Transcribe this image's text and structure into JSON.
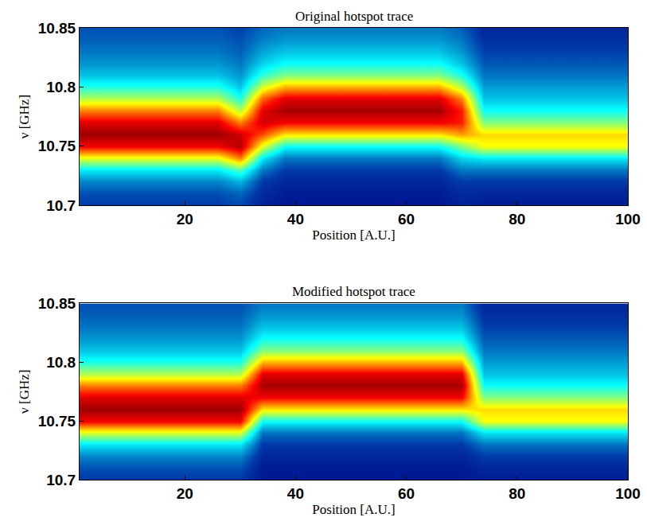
{
  "chart_data": [
    {
      "type": "heatmap",
      "title": "Original hotspot trace",
      "x_label": "Position [A.U.]",
      "y_label": "ν [GHz]",
      "x": [
        2,
        6,
        10,
        14,
        18,
        22,
        26,
        30,
        34,
        38,
        42,
        46,
        50,
        54,
        58,
        62,
        66,
        70,
        74,
        78,
        82,
        86,
        90,
        94,
        98
      ],
      "y": [
        10.7,
        10.71,
        10.72,
        10.73,
        10.74,
        10.75,
        10.76,
        10.77,
        10.78,
        10.79,
        10.8,
        10.81,
        10.82,
        10.83,
        10.84,
        10.85
      ],
      "z": [
        [
          0.12,
          0.12,
          0.12,
          0.12,
          0.12,
          0.12,
          0.12,
          0.14,
          0.07,
          0.05,
          0.05,
          0.05,
          0.05,
          0.05,
          0.05,
          0.05,
          0.05,
          0.07,
          0.06,
          0.06,
          0.06,
          0.06,
          0.06,
          0.06,
          0.06
        ],
        [
          0.15,
          0.15,
          0.15,
          0.15,
          0.15,
          0.15,
          0.15,
          0.18,
          0.09,
          0.06,
          0.06,
          0.06,
          0.06,
          0.06,
          0.06,
          0.06,
          0.06,
          0.09,
          0.08,
          0.08,
          0.08,
          0.08,
          0.08,
          0.08,
          0.08
        ],
        [
          0.22,
          0.22,
          0.22,
          0.22,
          0.22,
          0.22,
          0.22,
          0.28,
          0.12,
          0.08,
          0.08,
          0.08,
          0.08,
          0.08,
          0.08,
          0.08,
          0.08,
          0.12,
          0.12,
          0.12,
          0.12,
          0.12,
          0.12,
          0.12,
          0.12
        ],
        [
          0.35,
          0.35,
          0.35,
          0.35,
          0.35,
          0.35,
          0.35,
          0.45,
          0.2,
          0.12,
          0.12,
          0.12,
          0.12,
          0.12,
          0.12,
          0.12,
          0.12,
          0.2,
          0.2,
          0.2,
          0.2,
          0.2,
          0.2,
          0.2,
          0.2
        ],
        [
          0.6,
          0.6,
          0.6,
          0.6,
          0.6,
          0.6,
          0.6,
          0.75,
          0.35,
          0.2,
          0.2,
          0.2,
          0.2,
          0.2,
          0.2,
          0.2,
          0.2,
          0.32,
          0.35,
          0.35,
          0.35,
          0.35,
          0.35,
          0.35,
          0.35
        ],
        [
          0.88,
          0.88,
          0.88,
          0.88,
          0.88,
          0.88,
          0.88,
          0.95,
          0.6,
          0.38,
          0.38,
          0.38,
          0.38,
          0.38,
          0.38,
          0.38,
          0.38,
          0.5,
          0.62,
          0.62,
          0.62,
          0.62,
          0.62,
          0.62,
          0.62
        ],
        [
          0.97,
          0.97,
          0.97,
          0.97,
          0.97,
          0.97,
          0.97,
          0.92,
          0.8,
          0.65,
          0.65,
          0.65,
          0.65,
          0.65,
          0.65,
          0.65,
          0.65,
          0.72,
          0.66,
          0.66,
          0.66,
          0.66,
          0.66,
          0.66,
          0.66
        ],
        [
          0.9,
          0.9,
          0.9,
          0.9,
          0.9,
          0.9,
          0.9,
          0.75,
          0.92,
          0.88,
          0.88,
          0.88,
          0.88,
          0.88,
          0.88,
          0.88,
          0.88,
          0.85,
          0.5,
          0.5,
          0.5,
          0.5,
          0.5,
          0.5,
          0.5
        ],
        [
          0.75,
          0.75,
          0.75,
          0.75,
          0.75,
          0.75,
          0.75,
          0.55,
          0.9,
          0.96,
          0.96,
          0.96,
          0.96,
          0.96,
          0.96,
          0.96,
          0.96,
          0.85,
          0.38,
          0.38,
          0.38,
          0.38,
          0.38,
          0.38,
          0.38
        ],
        [
          0.55,
          0.55,
          0.55,
          0.55,
          0.55,
          0.55,
          0.55,
          0.4,
          0.78,
          0.9,
          0.9,
          0.9,
          0.9,
          0.9,
          0.9,
          0.9,
          0.9,
          0.75,
          0.3,
          0.3,
          0.3,
          0.3,
          0.3,
          0.3,
          0.3
        ],
        [
          0.4,
          0.4,
          0.4,
          0.4,
          0.4,
          0.4,
          0.4,
          0.3,
          0.58,
          0.7,
          0.7,
          0.7,
          0.7,
          0.7,
          0.7,
          0.7,
          0.7,
          0.55,
          0.25,
          0.25,
          0.25,
          0.25,
          0.25,
          0.25,
          0.25
        ],
        [
          0.3,
          0.3,
          0.3,
          0.3,
          0.3,
          0.3,
          0.3,
          0.24,
          0.42,
          0.5,
          0.5,
          0.5,
          0.5,
          0.5,
          0.5,
          0.5,
          0.5,
          0.4,
          0.2,
          0.2,
          0.2,
          0.2,
          0.2,
          0.2,
          0.2
        ],
        [
          0.24,
          0.24,
          0.24,
          0.24,
          0.24,
          0.24,
          0.24,
          0.2,
          0.32,
          0.38,
          0.38,
          0.38,
          0.38,
          0.38,
          0.38,
          0.38,
          0.38,
          0.3,
          0.16,
          0.16,
          0.16,
          0.16,
          0.16,
          0.16,
          0.16
        ],
        [
          0.2,
          0.2,
          0.2,
          0.2,
          0.2,
          0.2,
          0.2,
          0.17,
          0.26,
          0.3,
          0.3,
          0.3,
          0.3,
          0.3,
          0.3,
          0.3,
          0.3,
          0.24,
          0.13,
          0.13,
          0.13,
          0.13,
          0.13,
          0.13,
          0.13
        ],
        [
          0.17,
          0.17,
          0.17,
          0.17,
          0.17,
          0.17,
          0.17,
          0.15,
          0.21,
          0.24,
          0.24,
          0.24,
          0.24,
          0.24,
          0.24,
          0.24,
          0.24,
          0.2,
          0.1,
          0.1,
          0.1,
          0.1,
          0.1,
          0.1,
          0.1
        ],
        [
          0.15,
          0.15,
          0.15,
          0.15,
          0.15,
          0.15,
          0.15,
          0.13,
          0.18,
          0.2,
          0.2,
          0.2,
          0.2,
          0.2,
          0.2,
          0.2,
          0.2,
          0.17,
          0.08,
          0.08,
          0.08,
          0.08,
          0.08,
          0.08,
          0.08
        ]
      ],
      "zlim": [
        0,
        1
      ],
      "xlim": [
        1,
        100
      ],
      "xticks": [
        20,
        40,
        60,
        80,
        100
      ],
      "ylim": [
        10.7,
        10.85
      ],
      "yticks": [
        10.7,
        10.75,
        10.8,
        10.85
      ]
    },
    {
      "type": "heatmap",
      "title": "Modified hotspot trace",
      "x_label": "Position [A.U.]",
      "y_label": "ν [GHz]",
      "x": [
        2,
        6,
        10,
        14,
        18,
        22,
        26,
        30,
        34,
        38,
        42,
        46,
        50,
        54,
        58,
        62,
        66,
        70,
        74,
        78,
        82,
        86,
        90,
        94,
        98
      ],
      "y": [
        10.7,
        10.71,
        10.72,
        10.73,
        10.74,
        10.75,
        10.76,
        10.77,
        10.78,
        10.79,
        10.8,
        10.81,
        10.82,
        10.83,
        10.84,
        10.85
      ],
      "z": [
        [
          0.12,
          0.12,
          0.12,
          0.12,
          0.12,
          0.12,
          0.12,
          0.12,
          0.05,
          0.05,
          0.05,
          0.05,
          0.05,
          0.05,
          0.05,
          0.05,
          0.05,
          0.05,
          0.06,
          0.06,
          0.06,
          0.06,
          0.06,
          0.06,
          0.06
        ],
        [
          0.15,
          0.15,
          0.15,
          0.15,
          0.15,
          0.15,
          0.15,
          0.15,
          0.06,
          0.06,
          0.06,
          0.06,
          0.06,
          0.06,
          0.06,
          0.06,
          0.06,
          0.06,
          0.08,
          0.08,
          0.08,
          0.08,
          0.08,
          0.08,
          0.08
        ],
        [
          0.22,
          0.22,
          0.22,
          0.22,
          0.22,
          0.22,
          0.22,
          0.22,
          0.08,
          0.08,
          0.08,
          0.08,
          0.08,
          0.08,
          0.08,
          0.08,
          0.08,
          0.08,
          0.12,
          0.12,
          0.12,
          0.12,
          0.12,
          0.12,
          0.12
        ],
        [
          0.35,
          0.35,
          0.35,
          0.35,
          0.35,
          0.35,
          0.35,
          0.35,
          0.12,
          0.12,
          0.12,
          0.12,
          0.12,
          0.12,
          0.12,
          0.12,
          0.12,
          0.12,
          0.2,
          0.2,
          0.2,
          0.2,
          0.2,
          0.2,
          0.2
        ],
        [
          0.6,
          0.6,
          0.6,
          0.6,
          0.6,
          0.6,
          0.6,
          0.6,
          0.2,
          0.2,
          0.2,
          0.2,
          0.2,
          0.2,
          0.2,
          0.2,
          0.2,
          0.2,
          0.35,
          0.35,
          0.35,
          0.35,
          0.35,
          0.35,
          0.35
        ],
        [
          0.88,
          0.88,
          0.88,
          0.88,
          0.88,
          0.88,
          0.88,
          0.88,
          0.38,
          0.38,
          0.38,
          0.38,
          0.38,
          0.38,
          0.38,
          0.38,
          0.38,
          0.38,
          0.62,
          0.62,
          0.62,
          0.62,
          0.62,
          0.62,
          0.62
        ],
        [
          0.97,
          0.97,
          0.97,
          0.97,
          0.97,
          0.97,
          0.97,
          0.97,
          0.65,
          0.65,
          0.65,
          0.65,
          0.65,
          0.65,
          0.65,
          0.65,
          0.65,
          0.65,
          0.66,
          0.66,
          0.66,
          0.66,
          0.66,
          0.66,
          0.66
        ],
        [
          0.9,
          0.9,
          0.9,
          0.9,
          0.9,
          0.9,
          0.9,
          0.9,
          0.88,
          0.88,
          0.88,
          0.88,
          0.88,
          0.88,
          0.88,
          0.88,
          0.88,
          0.88,
          0.5,
          0.5,
          0.5,
          0.5,
          0.5,
          0.5,
          0.5
        ],
        [
          0.75,
          0.75,
          0.75,
          0.75,
          0.75,
          0.75,
          0.75,
          0.75,
          0.96,
          0.96,
          0.96,
          0.96,
          0.96,
          0.96,
          0.96,
          0.96,
          0.96,
          0.96,
          0.38,
          0.38,
          0.38,
          0.38,
          0.38,
          0.38,
          0.38
        ],
        [
          0.55,
          0.55,
          0.55,
          0.55,
          0.55,
          0.55,
          0.55,
          0.55,
          0.9,
          0.9,
          0.9,
          0.9,
          0.9,
          0.9,
          0.9,
          0.9,
          0.9,
          0.9,
          0.3,
          0.3,
          0.3,
          0.3,
          0.3,
          0.3,
          0.3
        ],
        [
          0.4,
          0.4,
          0.4,
          0.4,
          0.4,
          0.4,
          0.4,
          0.4,
          0.7,
          0.7,
          0.7,
          0.7,
          0.7,
          0.7,
          0.7,
          0.7,
          0.7,
          0.7,
          0.25,
          0.25,
          0.25,
          0.25,
          0.25,
          0.25,
          0.25
        ],
        [
          0.3,
          0.3,
          0.3,
          0.3,
          0.3,
          0.3,
          0.3,
          0.3,
          0.5,
          0.5,
          0.5,
          0.5,
          0.5,
          0.5,
          0.5,
          0.5,
          0.5,
          0.5,
          0.2,
          0.2,
          0.2,
          0.2,
          0.2,
          0.2,
          0.2
        ],
        [
          0.24,
          0.24,
          0.24,
          0.24,
          0.24,
          0.24,
          0.24,
          0.24,
          0.38,
          0.38,
          0.38,
          0.38,
          0.38,
          0.38,
          0.38,
          0.38,
          0.38,
          0.38,
          0.16,
          0.16,
          0.16,
          0.16,
          0.16,
          0.16,
          0.16
        ],
        [
          0.2,
          0.2,
          0.2,
          0.2,
          0.2,
          0.2,
          0.2,
          0.2,
          0.3,
          0.3,
          0.3,
          0.3,
          0.3,
          0.3,
          0.3,
          0.3,
          0.3,
          0.3,
          0.13,
          0.13,
          0.13,
          0.13,
          0.13,
          0.13,
          0.13
        ],
        [
          0.17,
          0.17,
          0.17,
          0.17,
          0.17,
          0.17,
          0.17,
          0.17,
          0.24,
          0.24,
          0.24,
          0.24,
          0.24,
          0.24,
          0.24,
          0.24,
          0.24,
          0.24,
          0.1,
          0.1,
          0.1,
          0.1,
          0.1,
          0.1,
          0.1
        ],
        [
          0.15,
          0.15,
          0.15,
          0.15,
          0.15,
          0.15,
          0.15,
          0.15,
          0.2,
          0.2,
          0.2,
          0.2,
          0.2,
          0.2,
          0.2,
          0.2,
          0.2,
          0.2,
          0.08,
          0.08,
          0.08,
          0.08,
          0.08,
          0.08,
          0.08
        ]
      ],
      "zlim": [
        0,
        1
      ],
      "xlim": [
        1,
        100
      ],
      "xticks": [
        20,
        40,
        60,
        80,
        100
      ],
      "ylim": [
        10.7,
        10.85
      ],
      "yticks": [
        10.7,
        10.75,
        10.8,
        10.85
      ]
    }
  ]
}
